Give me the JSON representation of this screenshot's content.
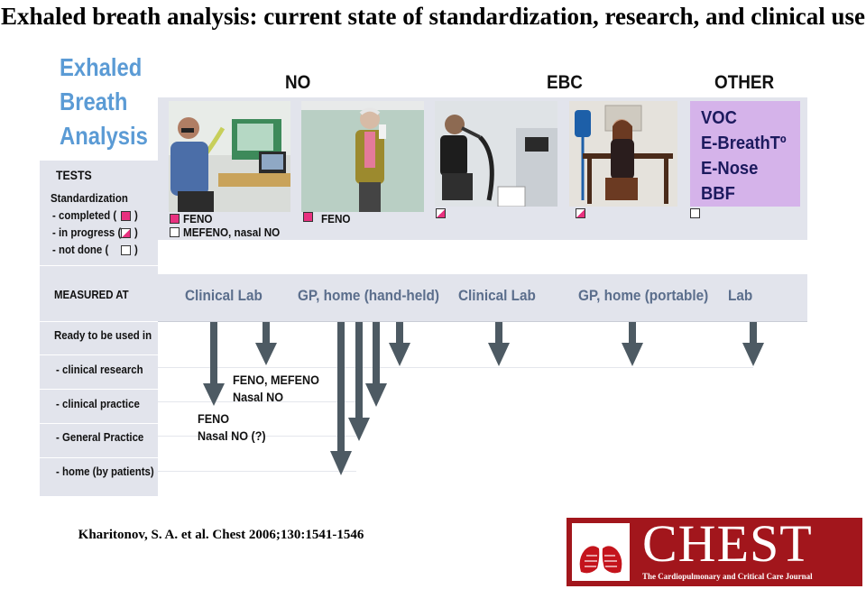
{
  "title": "Exhaled breath analysis: current state of standardization, research, and clinical use",
  "side_title": [
    "Exhaled",
    "Breath",
    "Analysis"
  ],
  "categories": {
    "no": "NO",
    "ebc": "EBC",
    "other": "OTHER"
  },
  "left_labels": {
    "tests": "TESTS",
    "standardization": "Standardization",
    "completed": "- completed   (",
    "in_progress": "- in progress (",
    "not_done": "- not done       (",
    "close_paren": ")",
    "measured_at": "MEASURED AT",
    "ready": "Ready to be used in",
    "clinical_research": "- clinical research",
    "clinical_practice": "- clinical practice",
    "general_practice": "- General Practice",
    "home": "- home (by patients)"
  },
  "photo_captions": {
    "feno_1": "FENO",
    "mefeno": "MEFENO, nasal NO",
    "feno_2": "FENO"
  },
  "other_items": [
    "VOC",
    "E-BreathTº",
    "E-Nose",
    "BBF"
  ],
  "measured_locations": [
    "Clinical Lab",
    "GP, home (hand-held)",
    "Clinical Lab",
    "GP, home (portable)",
    "Lab"
  ],
  "arrow_labels": {
    "feno_mefeno": [
      "FENO, MEFENO",
      "Nasal NO"
    ],
    "feno_nasal": [
      "FENO",
      "Nasal NO (?)"
    ]
  },
  "citation": "Kharitonov, S. A. et al. Chest 2006;130:1541-1546",
  "logo": {
    "brand": "CHEST",
    "tagline": "The Cardiopulmonary and Critical Care Journal"
  },
  "colors": {
    "blue_title": "#5b9bd5",
    "band": "#e2e4ec",
    "pink": "#e8317f",
    "lavender": "#d5b3ea",
    "arrow": "#4d5a63",
    "chest_red": "#a2161c"
  }
}
